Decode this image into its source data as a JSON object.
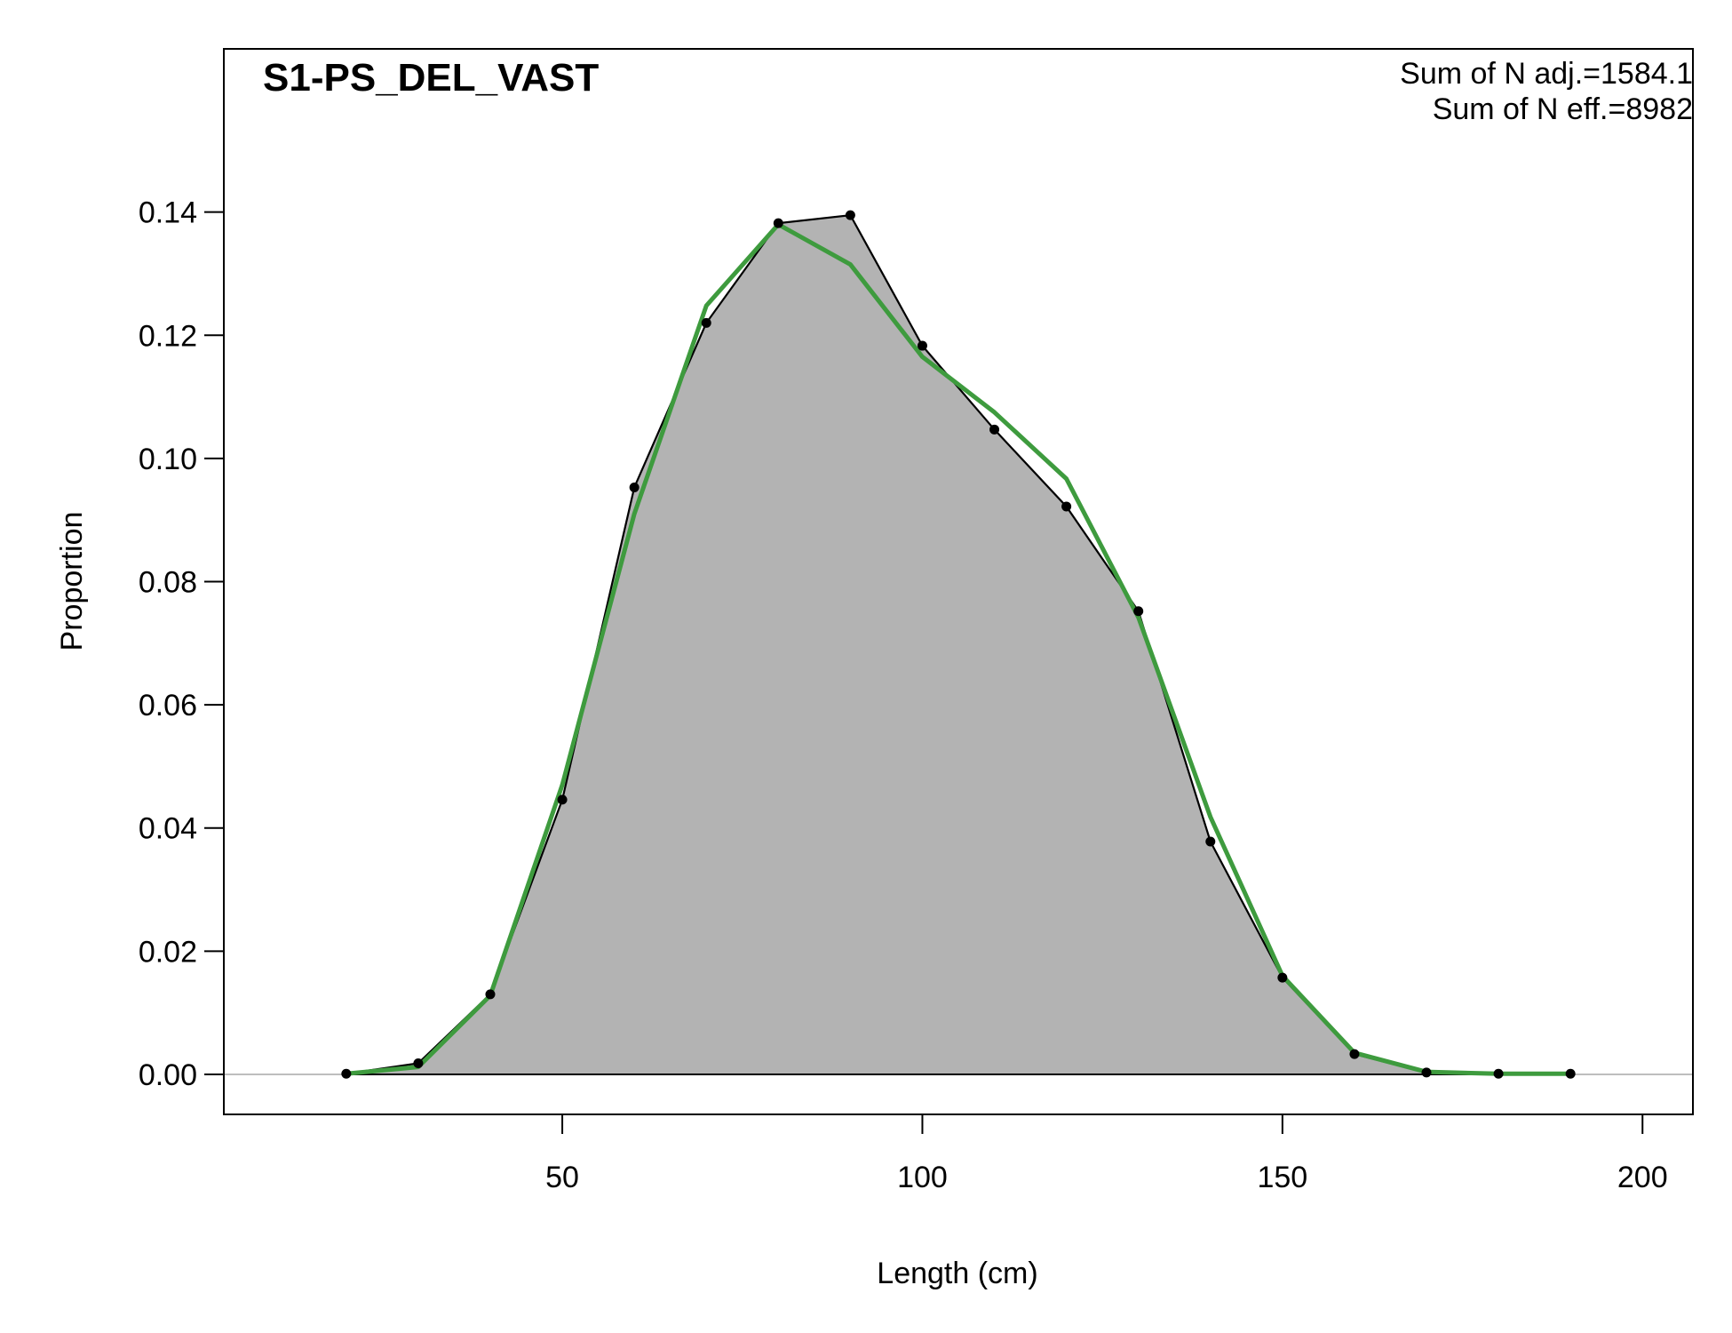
{
  "chart_data": {
    "type": "area",
    "title": "S1-PS_DEL_VAST",
    "xlabel": "Length (cm)",
    "ylabel": "Proportion",
    "xlim": [
      3,
      207
    ],
    "ylim": [
      -0.0065,
      0.1665
    ],
    "xticks": [
      50,
      100,
      150,
      200
    ],
    "xtick_labels": [
      "50",
      "100",
      "150",
      "200"
    ],
    "yticks": [
      0,
      0.02,
      0.04,
      0.06,
      0.08,
      0.1,
      0.12,
      0.14
    ],
    "ytick_labels": [
      "0.00",
      "0.02",
      "0.04",
      "0.06",
      "0.08",
      "0.10",
      "0.12",
      "0.14"
    ],
    "grid": false,
    "annotations": [
      "Sum of N adj.=1584.1",
      "Sum of N eff.=8982"
    ],
    "x": [
      20,
      30,
      40,
      50,
      60,
      70,
      80,
      90,
      100,
      110,
      120,
      130,
      140,
      150,
      160,
      170,
      180,
      190
    ],
    "series": [
      {
        "kind": "observed",
        "fill_color": "#b3b3b3",
        "line_color": "#000000",
        "values": [
          0.0001,
          0.0018,
          0.013,
          0.0446,
          0.0953,
          0.122,
          0.1382,
          0.1395,
          0.1183,
          0.1047,
          0.0922,
          0.0752,
          0.0378,
          0.0157,
          0.0033,
          0.0003,
          0.0001,
          0.0001
        ]
      },
      {
        "kind": "expected",
        "line_color": "#3e9b3e",
        "values": [
          0.0001,
          0.0012,
          0.0128,
          0.047,
          0.091,
          0.1248,
          0.138,
          0.1315,
          0.1165,
          0.1075,
          0.0967,
          0.0742,
          0.0418,
          0.016,
          0.0035,
          0.0004,
          0.0001,
          0.0001
        ]
      }
    ],
    "baseline_color": "#bebebe"
  }
}
